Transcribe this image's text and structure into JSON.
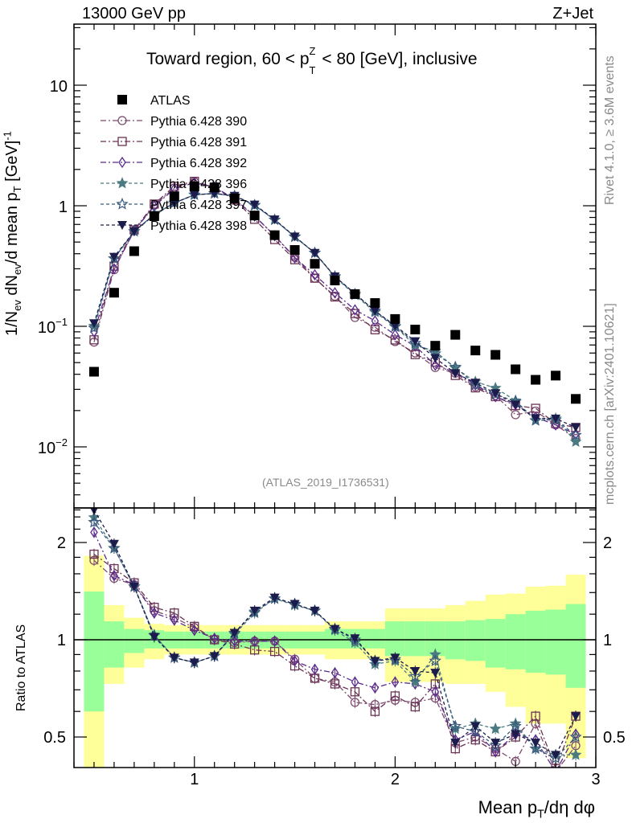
{
  "header": {
    "left": "13000 GeV pp",
    "right": "Z+Jet"
  },
  "side_text": {
    "rivet": "Rivet 4.1.0, ≥ 3.6M events",
    "mcplots": "mcplots.cern.ch [arXiv:2401.10621]"
  },
  "analysis_id": "(ATLAS_2019_I1736531)",
  "title": {
    "pre": "Toward region, 60 < p",
    "sub": "T",
    "sup": "Z",
    "post": " < 80 [GeV], inclusive"
  },
  "ylabel": {
    "a": "1/N",
    "a_sub": "ev",
    "b": " dN",
    "b_sub": "ev",
    "c": "/d mean p",
    "c_sub": "T",
    "d": " [GeV]",
    "d_sup": "-1"
  },
  "ratio_ylabel": "Ratio to ATLAS",
  "xlabel": {
    "a": "Mean p",
    "a_sub": "T",
    "b": "/dη dφ"
  },
  "chart_data": {
    "type": "line",
    "xlim": [
      0.4,
      3.0
    ],
    "ylim": [
      0.003,
      32
    ],
    "yscale": "log",
    "ratio_ylim": [
      0.4,
      2.56
    ],
    "ratio_yscale": "log",
    "x_ticks": [
      "1",
      "2",
      "3"
    ],
    "y_ticks": [
      {
        "v": 10,
        "base": "10",
        "exp": ""
      },
      {
        "v": 1,
        "base": "1",
        "exp": ""
      },
      {
        "v": 0.1,
        "base": "10",
        "exp": "−1"
      },
      {
        "v": 0.01,
        "base": "10",
        "exp": "−2"
      }
    ],
    "ratio_ticks": [
      "2",
      "1",
      "0.5"
    ],
    "x": [
      0.5,
      0.6,
      0.7,
      0.8,
      0.9,
      1.0,
      1.1,
      1.2,
      1.3,
      1.4,
      1.5,
      1.6,
      1.7,
      1.8,
      1.9,
      2.0,
      2.1,
      2.2,
      2.3,
      2.4,
      2.5,
      2.6,
      2.7,
      2.8,
      2.9
    ],
    "data": {
      "name": "ATLAS",
      "values": [
        0.042,
        0.19,
        0.42,
        0.82,
        1.2,
        1.45,
        1.42,
        1.15,
        0.83,
        0.57,
        0.43,
        0.33,
        0.24,
        0.185,
        0.156,
        0.115,
        0.094,
        0.069,
        0.085,
        0.063,
        0.058,
        0.044,
        0.036,
        0.039,
        0.025
      ]
    },
    "series": [
      {
        "name": "Pythia 6.428 390",
        "color": "#7d4b6e",
        "marker": "circle-open",
        "ratio": [
          1.76,
          1.55,
          1.48,
          1.23,
          1.17,
          1.09,
          1.0,
          0.98,
          0.99,
          0.99,
          0.87,
          0.76,
          0.74,
          0.64,
          0.63,
          0.65,
          0.64,
          0.66,
          0.48,
          0.5,
          0.46,
          0.42,
          0.55,
          0.39,
          0.47
        ]
      },
      {
        "name": "Pythia 6.428 391",
        "color": "#6a3354",
        "marker": "square-open",
        "ratio": [
          1.84,
          1.66,
          1.5,
          1.26,
          1.21,
          1.1,
          1.0,
          0.97,
          0.93,
          0.92,
          0.83,
          0.76,
          0.73,
          0.69,
          0.6,
          0.67,
          0.62,
          0.73,
          0.46,
          0.49,
          0.45,
          0.5,
          0.58,
          0.4,
          0.58
        ]
      },
      {
        "name": "Pythia 6.428 392",
        "color": "#5a2a8c",
        "marker": "diamond-open",
        "ratio": [
          2.15,
          1.58,
          1.48,
          1.21,
          1.15,
          1.07,
          1.01,
          0.99,
          0.99,
          0.99,
          0.86,
          0.81,
          0.79,
          0.74,
          0.71,
          0.74,
          0.73,
          0.69,
          0.49,
          0.52,
          0.45,
          0.51,
          0.49,
          0.39,
          0.51
        ]
      },
      {
        "name": "Pythia 6.428 396",
        "color": "#4a7b80",
        "marker": "star-filled",
        "ratio": [
          2.39,
          1.92,
          1.46,
          1.035,
          0.88,
          0.85,
          0.89,
          1.04,
          1.21,
          1.34,
          1.28,
          1.23,
          1.07,
          0.98,
          0.84,
          0.86,
          0.74,
          0.9,
          0.53,
          0.55,
          0.53,
          0.55,
          0.46,
          0.44,
          0.44
        ]
      },
      {
        "name": "Pythia 6.428 397",
        "color": "#3a5a7e",
        "marker": "star-open",
        "ratio": [
          2.31,
          1.92,
          1.46,
          1.03,
          0.88,
          0.85,
          0.89,
          1.05,
          1.22,
          1.34,
          1.29,
          1.23,
          1.08,
          1.0,
          0.86,
          0.87,
          0.77,
          0.86,
          0.54,
          0.52,
          0.47,
          0.54,
          0.46,
          0.43,
          0.5
        ]
      },
      {
        "name": "Pythia 6.428 398",
        "color": "#1c1c4c",
        "marker": "triangle-down-filled",
        "ratio": [
          2.52,
          1.98,
          1.46,
          1.02,
          0.88,
          0.85,
          0.89,
          1.05,
          1.23,
          1.35,
          1.29,
          1.23,
          1.08,
          1.01,
          0.86,
          0.88,
          0.8,
          0.79,
          0.48,
          0.54,
          0.48,
          0.51,
          0.48,
          0.44,
          0.58
        ]
      }
    ],
    "uncertainty_band": {
      "colors": {
        "inner": "#99ff99",
        "outer": "#ffff99"
      },
      "outer_lo": [
        0.4,
        0.73,
        0.82,
        0.87,
        0.9,
        0.9,
        0.9,
        0.9,
        0.9,
        0.9,
        0.9,
        0.9,
        0.87,
        0.87,
        0.87,
        0.74,
        0.74,
        0.74,
        0.73,
        0.73,
        0.69,
        0.62,
        0.55,
        0.55,
        0.43
      ],
      "inner_lo": [
        0.6,
        0.82,
        0.91,
        0.94,
        0.94,
        0.94,
        0.94,
        0.94,
        0.94,
        0.94,
        0.94,
        0.94,
        0.94,
        0.94,
        0.94,
        0.89,
        0.89,
        0.89,
        0.87,
        0.86,
        0.82,
        0.81,
        0.79,
        0.78,
        0.71
      ],
      "inner_hi": [
        1.41,
        1.14,
        1.08,
        1.07,
        1.06,
        1.06,
        1.06,
        1.06,
        1.06,
        1.06,
        1.06,
        1.06,
        1.08,
        1.08,
        1.08,
        1.14,
        1.14,
        1.14,
        1.14,
        1.15,
        1.16,
        1.2,
        1.23,
        1.24,
        1.29
      ],
      "outer_hi": [
        1.82,
        1.28,
        1.17,
        1.12,
        1.11,
        1.11,
        1.11,
        1.11,
        1.11,
        1.11,
        1.11,
        1.11,
        1.14,
        1.14,
        1.14,
        1.25,
        1.25,
        1.25,
        1.28,
        1.32,
        1.38,
        1.39,
        1.46,
        1.47,
        1.59
      ]
    }
  }
}
